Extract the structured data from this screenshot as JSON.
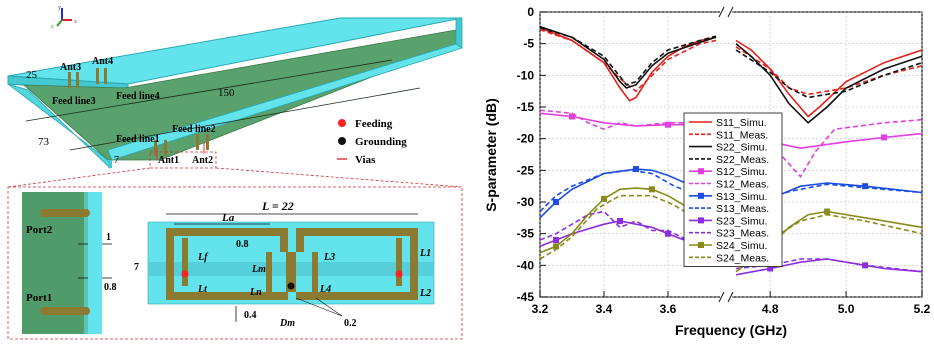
{
  "left_figure": {
    "axes_labels": {
      "x": "x",
      "y": "y",
      "z": "z"
    },
    "dims": {
      "w25": "25",
      "l150": "150",
      "h73": "73",
      "h7": "7"
    },
    "ant_labels": [
      "Ant3",
      "Ant4",
      "Ant1",
      "Ant2"
    ],
    "feed_labels": [
      "Feed line3",
      "Feed line4",
      "Feed line1",
      "Feed line2"
    ],
    "legend": {
      "feeding": "Feeding",
      "grounding": "Grounding",
      "vias": "Vias"
    },
    "colors": {
      "substrate": "#63e3ec",
      "ground": "#4f9c6a",
      "strip": "#8a7a32",
      "feed_dot": "#ff2020",
      "via": "#e23a3a"
    },
    "detail": {
      "port2": "Port2",
      "port1": "Port1",
      "d1": "1",
      "d08a": "0.8",
      "length": "L = 22",
      "La": "La",
      "d08b": "0.8",
      "h7": "7",
      "Lf": "Lf",
      "Lm": "Lm",
      "Lt": "Lt",
      "Ln": "Ln",
      "L3": "L3",
      "L4": "L4",
      "L1": "L1",
      "L2": "L2",
      "d04": "0.4",
      "Dm": "Dm",
      "d02": "0.2"
    }
  },
  "chart_data": {
    "type": "line",
    "title": "",
    "xlabel": "Frequency (GHz)",
    "ylabel": "S-parameter (dB)",
    "ylim": [
      -45,
      0
    ],
    "yticks": [
      "0",
      "-5",
      "-10",
      "-15",
      "-20",
      "-25",
      "-30",
      "-35",
      "-40",
      "-45"
    ],
    "xticks": [
      "3.2",
      "3.4",
      "3.6",
      "4.8",
      "5.0",
      "5.2"
    ],
    "x_break": "between 3.75 and 4.71 GHz",
    "grid": true,
    "legend_position": "center",
    "series": [
      {
        "name": "S11_Simu.",
        "color": "#e8201a",
        "dash": false,
        "marker": "none",
        "points": [
          [
            3.2,
            -2.5
          ],
          [
            3.3,
            -4.5
          ],
          [
            3.4,
            -8
          ],
          [
            3.45,
            -12
          ],
          [
            3.48,
            -14
          ],
          [
            3.5,
            -13.5
          ],
          [
            3.55,
            -9.5
          ],
          [
            3.6,
            -7
          ],
          [
            3.65,
            -5.5
          ],
          [
            3.7,
            -4.5
          ],
          [
            3.75,
            -4
          ],
          [
            4.71,
            -4.5
          ],
          [
            4.75,
            -6
          ],
          [
            4.8,
            -9
          ],
          [
            4.85,
            -13
          ],
          [
            4.9,
            -16.5
          ],
          [
            4.93,
            -15
          ],
          [
            5.0,
            -11
          ],
          [
            5.1,
            -8
          ],
          [
            5.2,
            -6
          ]
        ]
      },
      {
        "name": "S11_Meas.",
        "color": "#e8201a",
        "dash": true,
        "marker": "none",
        "points": [
          [
            3.2,
            -2.8
          ],
          [
            3.3,
            -4.5
          ],
          [
            3.4,
            -8
          ],
          [
            3.45,
            -10.5
          ],
          [
            3.5,
            -12.5
          ],
          [
            3.55,
            -10
          ],
          [
            3.6,
            -7.5
          ],
          [
            3.7,
            -5
          ],
          [
            3.75,
            -4.5
          ],
          [
            4.71,
            -5.5
          ],
          [
            4.8,
            -9
          ],
          [
            4.85,
            -12
          ],
          [
            4.9,
            -13
          ],
          [
            5.0,
            -12
          ],
          [
            5.1,
            -10
          ],
          [
            5.2,
            -8.5
          ]
        ]
      },
      {
        "name": "S22_Simu.",
        "color": "#111111",
        "dash": false,
        "marker": "none",
        "points": [
          [
            3.2,
            -2.3
          ],
          [
            3.3,
            -4
          ],
          [
            3.4,
            -7.5
          ],
          [
            3.45,
            -11
          ],
          [
            3.47,
            -12
          ],
          [
            3.5,
            -11.5
          ],
          [
            3.55,
            -8.5
          ],
          [
            3.6,
            -6.5
          ],
          [
            3.7,
            -4.8
          ],
          [
            3.75,
            -4
          ],
          [
            4.71,
            -5
          ],
          [
            4.75,
            -7
          ],
          [
            4.8,
            -10
          ],
          [
            4.85,
            -14.5
          ],
          [
            4.9,
            -17.5
          ],
          [
            4.95,
            -15
          ],
          [
            5.0,
            -12
          ],
          [
            5.1,
            -9
          ],
          [
            5.2,
            -7
          ]
        ]
      },
      {
        "name": "S22_Meas.",
        "color": "#111111",
        "dash": true,
        "marker": "none",
        "points": [
          [
            3.2,
            -2.5
          ],
          [
            3.3,
            -4
          ],
          [
            3.4,
            -7
          ],
          [
            3.47,
            -11.5
          ],
          [
            3.5,
            -11
          ],
          [
            3.55,
            -8
          ],
          [
            3.6,
            -6
          ],
          [
            3.7,
            -4.5
          ],
          [
            3.75,
            -3.8
          ],
          [
            4.71,
            -6
          ],
          [
            4.8,
            -9.5
          ],
          [
            4.85,
            -12
          ],
          [
            4.9,
            -13.5
          ],
          [
            5.0,
            -12.5
          ],
          [
            5.1,
            -10
          ],
          [
            5.2,
            -8
          ]
        ]
      },
      {
        "name": "S12_Simu.",
        "color": "#e23ee0",
        "dash": false,
        "marker": "square",
        "points": [
          [
            3.2,
            -16
          ],
          [
            3.3,
            -16.5
          ],
          [
            3.4,
            -17.5
          ],
          [
            3.5,
            -18
          ],
          [
            3.6,
            -17.8
          ],
          [
            3.7,
            -17.8
          ],
          [
            4.75,
            -19.5
          ],
          [
            4.8,
            -20.5
          ],
          [
            4.88,
            -21.5
          ],
          [
            5.0,
            -20.5
          ],
          [
            5.1,
            -19.8
          ],
          [
            5.2,
            -19.2
          ]
        ]
      },
      {
        "name": "S12_Meas.",
        "color": "#e23ee0",
        "dash": true,
        "marker": "none",
        "points": [
          [
            3.2,
            -15.5
          ],
          [
            3.3,
            -16
          ],
          [
            3.35,
            -17.5
          ],
          [
            3.4,
            -18.5
          ],
          [
            3.45,
            -17.5
          ],
          [
            3.5,
            -18
          ],
          [
            3.6,
            -17.5
          ],
          [
            3.7,
            -17.5
          ],
          [
            4.75,
            -19
          ],
          [
            4.82,
            -22
          ],
          [
            4.88,
            -26
          ],
          [
            4.92,
            -22
          ],
          [
            4.97,
            -18.5
          ],
          [
            5.1,
            -17.5
          ],
          [
            5.2,
            -17
          ]
        ]
      },
      {
        "name": "S13_Simu.",
        "color": "#1a4ee0",
        "dash": false,
        "marker": "square",
        "points": [
          [
            3.2,
            -32.5
          ],
          [
            3.25,
            -30
          ],
          [
            3.3,
            -28
          ],
          [
            3.4,
            -25.5
          ],
          [
            3.5,
            -24.8
          ],
          [
            3.55,
            -25
          ],
          [
            3.6,
            -25.8
          ],
          [
            3.7,
            -28
          ],
          [
            3.75,
            -29.5
          ],
          [
            4.71,
            -32
          ],
          [
            4.8,
            -29.5
          ],
          [
            4.88,
            -27.5
          ],
          [
            4.95,
            -27
          ],
          [
            5.05,
            -27.5
          ],
          [
            5.2,
            -28.5
          ]
        ]
      },
      {
        "name": "S13_Meas.",
        "color": "#1a4ee0",
        "dash": true,
        "marker": "none",
        "points": [
          [
            3.2,
            -31.5
          ],
          [
            3.25,
            -29
          ],
          [
            3.3,
            -27.5
          ],
          [
            3.4,
            -25.5
          ],
          [
            3.48,
            -25
          ],
          [
            3.55,
            -25.5
          ],
          [
            3.62,
            -27.5
          ],
          [
            3.7,
            -29
          ],
          [
            3.75,
            -30
          ],
          [
            4.71,
            -32.5
          ],
          [
            4.8,
            -29
          ],
          [
            4.88,
            -28
          ],
          [
            4.95,
            -27.2
          ],
          [
            5.1,
            -28
          ],
          [
            5.2,
            -28.5
          ]
        ]
      },
      {
        "name": "S23_Simu.",
        "color": "#8c2de0",
        "dash": false,
        "marker": "square",
        "points": [
          [
            3.2,
            -37
          ],
          [
            3.25,
            -36
          ],
          [
            3.3,
            -35
          ],
          [
            3.4,
            -33.5
          ],
          [
            3.45,
            -33
          ],
          [
            3.5,
            -33.5
          ],
          [
            3.55,
            -34
          ],
          [
            3.6,
            -35
          ],
          [
            3.7,
            -37
          ],
          [
            3.75,
            -38
          ],
          [
            4.71,
            -41.5
          ],
          [
            4.8,
            -40.5
          ],
          [
            4.88,
            -39.5
          ],
          [
            4.95,
            -39
          ],
          [
            5.05,
            -40
          ],
          [
            5.1,
            -40.5
          ],
          [
            5.2,
            -41
          ]
        ]
      },
      {
        "name": "S23_Meas.",
        "color": "#8c2de0",
        "dash": true,
        "marker": "none",
        "points": [
          [
            3.2,
            -36
          ],
          [
            3.25,
            -35
          ],
          [
            3.3,
            -33.5
          ],
          [
            3.35,
            -32
          ],
          [
            3.4,
            -31.5
          ],
          [
            3.45,
            -34
          ],
          [
            3.5,
            -33
          ],
          [
            3.55,
            -34.5
          ],
          [
            3.6,
            -34.5
          ],
          [
            3.7,
            -37
          ],
          [
            3.75,
            -38
          ],
          [
            4.71,
            -40.5
          ],
          [
            4.8,
            -40
          ],
          [
            4.88,
            -39
          ],
          [
            4.95,
            -39
          ],
          [
            5.05,
            -40
          ],
          [
            5.2,
            -41
          ]
        ]
      },
      {
        "name": "S24_Simu.",
        "color": "#8a8a1a",
        "dash": false,
        "marker": "square",
        "points": [
          [
            3.2,
            -38
          ],
          [
            3.25,
            -37
          ],
          [
            3.3,
            -35
          ],
          [
            3.35,
            -32
          ],
          [
            3.4,
            -29.5
          ],
          [
            3.45,
            -28
          ],
          [
            3.5,
            -27.8
          ],
          [
            3.55,
            -28
          ],
          [
            3.6,
            -29
          ],
          [
            3.7,
            -32
          ],
          [
            3.75,
            -34
          ],
          [
            4.71,
            -41
          ],
          [
            4.78,
            -38
          ],
          [
            4.85,
            -34
          ],
          [
            4.9,
            -32
          ],
          [
            4.95,
            -31.5
          ],
          [
            5.05,
            -32.5
          ],
          [
            5.2,
            -34
          ]
        ]
      },
      {
        "name": "S24_Meas.",
        "color": "#8a8a1a",
        "dash": true,
        "marker": "none",
        "points": [
          [
            3.2,
            -39
          ],
          [
            3.25,
            -37.5
          ],
          [
            3.3,
            -35.5
          ],
          [
            3.38,
            -31
          ],
          [
            3.45,
            -29
          ],
          [
            3.55,
            -29
          ],
          [
            3.62,
            -30.5
          ],
          [
            3.7,
            -33
          ],
          [
            3.75,
            -34
          ],
          [
            4.71,
            -40
          ],
          [
            4.8,
            -36
          ],
          [
            4.88,
            -33
          ],
          [
            4.95,
            -32
          ],
          [
            5.05,
            -33
          ],
          [
            5.2,
            -35
          ]
        ]
      }
    ]
  }
}
